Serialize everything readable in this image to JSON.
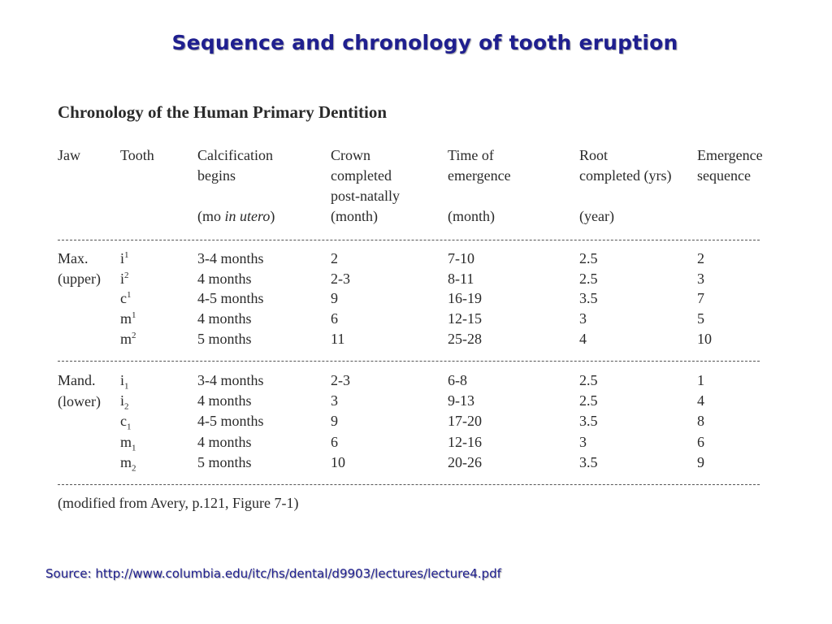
{
  "slide_title": "Sequence and chronology of tooth eruption",
  "table_title": "Chronology of the Human Primary Dentition",
  "headers": {
    "jaw": "Jaw",
    "tooth": "Tooth",
    "calcification_line1": "Calcification",
    "calcification_line2": "begins",
    "calcification_unit_pre": "(mo ",
    "calcification_unit_italic": "in utero",
    "calcification_unit_post": ")",
    "crown_line1": "Crown",
    "crown_line2": "completed",
    "crown_line3": "post-natally",
    "crown_unit": "(month)",
    "emergence_line1": "Time of",
    "emergence_line2": "emergence",
    "emergence_unit": "(month)",
    "root_line1": "Root",
    "root_line2": "completed (yrs)",
    "root_unit": "(year)",
    "sequence_line1": "Emergence",
    "sequence_line2": "sequence"
  },
  "upper": {
    "jaw_line1": "Max.",
    "jaw_line2": "(upper)",
    "rows": [
      {
        "tooth": "i",
        "idx": "1",
        "calc": "3-4 months",
        "crown": "2",
        "emergence": "7-10",
        "root": "2.5",
        "sequence": "2"
      },
      {
        "tooth": "i",
        "idx": "2",
        "calc": "4 months",
        "crown": "2-3",
        "emergence": "8-11",
        "root": "2.5",
        "sequence": "3"
      },
      {
        "tooth": "c",
        "idx": "1",
        "calc": "4-5 months",
        "crown": "9",
        "emergence": "16-19",
        "root": "3.5",
        "sequence": "7"
      },
      {
        "tooth": "m",
        "idx": "1",
        "calc": "4 months",
        "crown": "6",
        "emergence": "12-15",
        "root": "3",
        "sequence": "5"
      },
      {
        "tooth": "m",
        "idx": "2",
        "calc": "5 months",
        "crown": "11",
        "emergence": "25-28",
        "root": "4",
        "sequence": "10"
      }
    ]
  },
  "lower": {
    "jaw_line1": "Mand.",
    "jaw_line2": "(lower)",
    "rows": [
      {
        "tooth": "i",
        "idx": "1",
        "calc": "3-4 months",
        "crown": "2-3",
        "emergence": "6-8",
        "root": "2.5",
        "sequence": "1"
      },
      {
        "tooth": "i",
        "idx": "2",
        "calc": "4 months",
        "crown": "3",
        "emergence": "9-13",
        "root": "2.5",
        "sequence": "4"
      },
      {
        "tooth": "c",
        "idx": "1",
        "calc": "4-5 months",
        "crown": "9",
        "emergence": "17-20",
        "root": "3.5",
        "sequence": "8"
      },
      {
        "tooth": "m",
        "idx": "1",
        "calc": "4 months",
        "crown": "6",
        "emergence": "12-16",
        "root": "3",
        "sequence": "6"
      },
      {
        "tooth": "m",
        "idx": "2",
        "calc": "5 months",
        "crown": "10",
        "emergence": "20-26",
        "root": "3.5",
        "sequence": "9"
      }
    ]
  },
  "footnote": "(modified from Avery, p.121, Figure 7-1)",
  "source": "Source: http://www.columbia.edu/itc/hs/dental/d9903/lectures/lecture4.pdf"
}
